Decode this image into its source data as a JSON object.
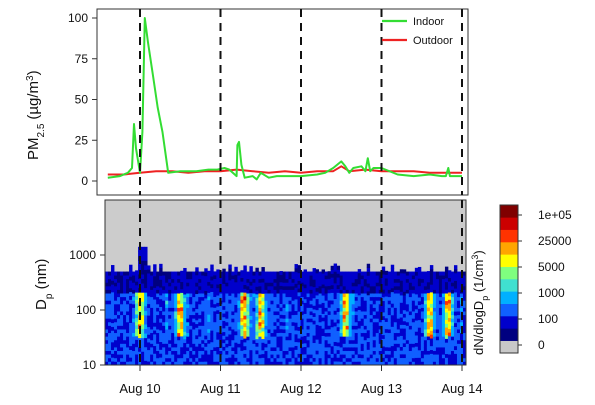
{
  "chart_data": [
    {
      "type": "line",
      "ylabel": "PM2.5 (µg/m³)",
      "ylabel_main": "PM",
      "ylabel_sub": "2.5",
      "ylabel_unit": "(µg/m",
      "ylabel_sup": "3",
      "ylabel_close": ")",
      "ylim": [
        0,
        100
      ],
      "yticks": [
        0,
        25,
        50,
        75,
        100
      ],
      "x_range_days": [
        9.55,
        14.0
      ],
      "grid": false,
      "legend_position": "top-right",
      "dashed_lines_at": [
        "Aug 10",
        "Aug 11",
        "Aug 12",
        "Aug 13",
        "Aug 14"
      ],
      "series": [
        {
          "name": "Indoor",
          "color": "#33dd33",
          "x": [
            "Aug 9 14:24",
            "Aug 9 18:00",
            "Aug 9 20:24",
            "Aug 9 21:36",
            "Aug 9 22:12",
            "Aug 9 22:48",
            "Aug 10 00:00",
            "Aug 10 00:43",
            "Aug 10 01:26",
            "Aug 10 02:24",
            "Aug 10 03:50",
            "Aug 10 05:17",
            "Aug 10 06:43",
            "Aug 10 08:24",
            "Aug 10 12:00",
            "Aug 10 16:48",
            "Aug 10 20:24",
            "Aug 10 23:02",
            "Aug 11 01:12",
            "Aug 11 02:38",
            "Aug 11 04:48",
            "Aug 11 05:02",
            "Aug 11 05:31",
            "Aug 11 06:14",
            "Aug 11 07:12",
            "Aug 11 09:36",
            "Aug 11 10:48",
            "Aug 11 12:00",
            "Aug 11 14:24",
            "Aug 11 16:48",
            "Aug 11 19:12",
            "Aug 12 00:00",
            "Aug 12 04:48",
            "Aug 12 07:12",
            "Aug 12 09:36",
            "Aug 12 12:00",
            "Aug 12 13:12",
            "Aug 12 14:24",
            "Aug 12 15:36",
            "Aug 12 18:00",
            "Aug 12 19:12",
            "Aug 12 19:55",
            "Aug 12 20:38",
            "Aug 12 21:36",
            "Aug 13 00:00",
            "Aug 13 04:48",
            "Aug 13 09:36",
            "Aug 13 14:24",
            "Aug 13 18:00",
            "Aug 13 19:12",
            "Aug 13 19:55",
            "Aug 13 20:24",
            "Aug 14 00:00"
          ],
          "y": [
            2,
            3,
            5,
            8,
            35,
            20,
            5,
            30,
            100,
            85,
            65,
            45,
            30,
            5,
            6,
            6,
            7,
            7,
            8,
            7,
            3,
            22,
            24,
            10,
            2,
            3,
            1,
            5,
            2,
            3,
            3,
            3,
            4,
            5,
            8,
            12,
            9,
            5,
            8,
            9,
            6,
            14,
            6,
            8,
            8,
            4,
            3,
            4,
            3,
            3,
            8,
            3,
            3
          ]
        },
        {
          "name": "Outdoor",
          "color": "#ee2222",
          "x": [
            "Aug 9 14:24",
            "Aug 9 19:12",
            "Aug 10 00:00",
            "Aug 10 04:48",
            "Aug 10 09:36",
            "Aug 10 14:24",
            "Aug 10 19:12",
            "Aug 11 00:00",
            "Aug 11 04:48",
            "Aug 11 09:36",
            "Aug 11 14:24",
            "Aug 11 19:12",
            "Aug 12 00:00",
            "Aug 12 04:48",
            "Aug 12 09:36",
            "Aug 12 12:00",
            "Aug 12 14:24",
            "Aug 12 19:12",
            "Aug 13 00:00",
            "Aug 13 04:48",
            "Aug 13 09:36",
            "Aug 13 14:24",
            "Aug 13 19:12",
            "Aug 14 00:00"
          ],
          "y": [
            4,
            4,
            5,
            6,
            6,
            5,
            6,
            6,
            7,
            6,
            5,
            6,
            5,
            6,
            6,
            9,
            6,
            7,
            6,
            6,
            6,
            5,
            5,
            5
          ]
        }
      ]
    },
    {
      "type": "heatmap",
      "ylabel": "Dp (nm)",
      "ylabel_main": "D",
      "ylabel_sub": "p",
      "ylabel_rest": " (nm)",
      "yscale": "log",
      "ylim": [
        10,
        10000
      ],
      "yticks": [
        10,
        100,
        1000
      ],
      "ytick_labels": [
        "10",
        "100",
        "1000"
      ],
      "xtick_labels": [
        "Aug 10",
        "Aug 11",
        "Aug 12",
        "Aug 13",
        "Aug 14"
      ],
      "colorbar": {
        "label": "dN/dlogDp (1/cm³)",
        "label_main": "dN/dlogD",
        "label_sub": "p",
        "label_unit": " (1/cm",
        "label_sup": "3",
        "label_close": ")",
        "tick_labels": [
          "1e+05",
          "25000",
          "5000",
          "1000",
          "100",
          "0"
        ],
        "colors": [
          "#c8c8c8",
          "#000080",
          "#0000cc",
          "#1060ff",
          "#00b0ff",
          "#40e0d0",
          "#7fff7f",
          "#ffff00",
          "#ffa500",
          "#ff3300",
          "#cc0000",
          "#800000"
        ]
      },
      "background_above_range": "#cccccc",
      "upper_measured_limit_nm": 500,
      "notable_high_concentration_times": [
        "Aug 10 00:00",
        "Aug 10 12:00",
        "Aug 11 07:12",
        "Aug 11 12:00",
        "Aug 12 13:12",
        "Aug 13 14:24",
        "Aug 13 19:55"
      ]
    }
  ]
}
